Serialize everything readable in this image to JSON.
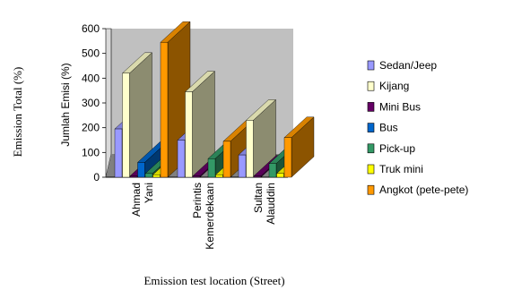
{
  "chart_data": {
    "type": "bar",
    "subtype": "3d-clustered-column",
    "ylabel_outer": "Emission Total (%)",
    "ylabel_inner": "Jumlah Emisi (%)",
    "xlabel": "Emission test location (Street)",
    "ylim": [
      0,
      600
    ],
    "yticks": [
      0,
      100,
      200,
      300,
      400,
      500,
      600
    ],
    "grid": false,
    "legend_position": "right",
    "categories": [
      [
        "Ahmad",
        "Yani"
      ],
      [
        "Perintis",
        "Kemerdekaan"
      ],
      [
        "Sultan",
        "Alauddin"
      ]
    ],
    "series": [
      {
        "name": "Sedan/Jeep",
        "color": "#9999ff",
        "values": [
          195,
          150,
          90
        ]
      },
      {
        "name": "Kijang",
        "color": "#ffffcc",
        "values": [
          420,
          345,
          230
        ]
      },
      {
        "name": "Mini Bus",
        "color": "#660066",
        "values": [
          5,
          5,
          5
        ]
      },
      {
        "name": "Bus",
        "color": "#0066cc",
        "values": [
          60,
          0,
          0
        ]
      },
      {
        "name": "Pick-up",
        "color": "#339966",
        "values": [
          15,
          75,
          55
        ]
      },
      {
        "name": "Truk mini",
        "color": "#ffff00",
        "values": [
          10,
          10,
          15
        ]
      },
      {
        "name": "Angkot (pete-pete)",
        "color": "#ff9900",
        "values": [
          545,
          145,
          160
        ]
      }
    ]
  }
}
